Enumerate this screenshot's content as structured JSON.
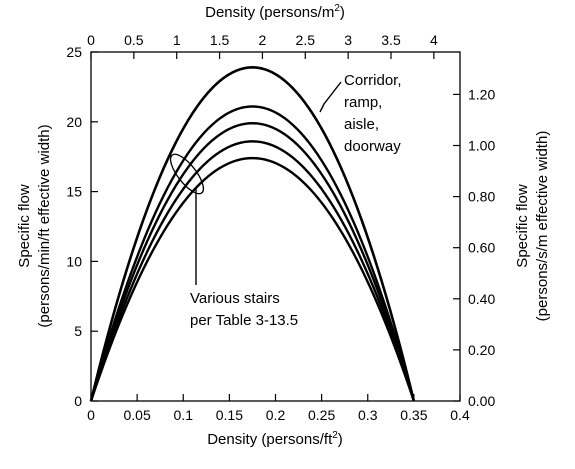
{
  "chart_data": {
    "type": "line",
    "title": "",
    "xlabel_bottom": "Density (persons/ft",
    "xlabel_bottom_sup": "2",
    "xlabel_bottom_end": ")",
    "xlabel_top": "Density (persons/m",
    "xlabel_top_sup": "2",
    "xlabel_top_end": ")",
    "ylabel_left_line1": "Specific flow",
    "ylabel_left_line2": "(persons/min/ft effective width)",
    "ylabel_right_line1": "Specific flow",
    "ylabel_right_line2": "(persons/s/m effective width)",
    "xlim_bottom": [
      0,
      0.4
    ],
    "ylim_left": [
      0,
      25
    ],
    "xlim_top": [
      0,
      4.305
    ],
    "ylim_right": [
      0,
      1.366
    ],
    "x_ticks_bottom": [
      "0",
      "0.05",
      "0.1",
      "0.15",
      "0.2",
      "0.25",
      "0.3",
      "0.35",
      "0.4"
    ],
    "x_tick_values_bottom": [
      0,
      0.05,
      0.1,
      0.15,
      0.2,
      0.25,
      0.3,
      0.35,
      0.4
    ],
    "x_ticks_top": [
      "0",
      "0.5",
      "1",
      "1.5",
      "2",
      "2.5",
      "3",
      "3.5",
      "4"
    ],
    "x_tick_values_top": [
      0,
      0.5,
      1,
      1.5,
      2,
      2.5,
      3,
      3.5,
      4
    ],
    "y_ticks_left": [
      "0",
      "5",
      "10",
      "15",
      "20",
      "25"
    ],
    "y_tick_values_left": [
      0,
      5,
      10,
      15,
      20,
      25
    ],
    "y_ticks_right": [
      "0.00",
      "0.20",
      "0.40",
      "0.60",
      "0.80",
      "1.00",
      "1.20"
    ],
    "y_tick_values_right": [
      0,
      0.2,
      0.4,
      0.6,
      0.8,
      1.0,
      1.2
    ],
    "grid": false,
    "series": [
      {
        "name": "Corridor, ramp, aisle, doorway",
        "peak_x": 0.175,
        "peak_y": 23.9,
        "x_end": 0.35
      },
      {
        "peak_x": 0.175,
        "peak_y": 21.1,
        "x_end": 0.35
      },
      {
        "peak_x": 0.175,
        "peak_y": 19.9,
        "x_end": 0.35
      },
      {
        "peak_x": 0.175,
        "peak_y": 18.6,
        "x_end": 0.35
      },
      {
        "peak_x": 0.175,
        "peak_y": 17.4,
        "x_end": 0.35
      }
    ],
    "annotations": {
      "corridor_lines": [
        "Corridor,",
        "ramp,",
        "aisle,",
        "doorway"
      ],
      "stairs_lines": [
        "Various stairs",
        "per Table 3-13.5"
      ]
    }
  }
}
